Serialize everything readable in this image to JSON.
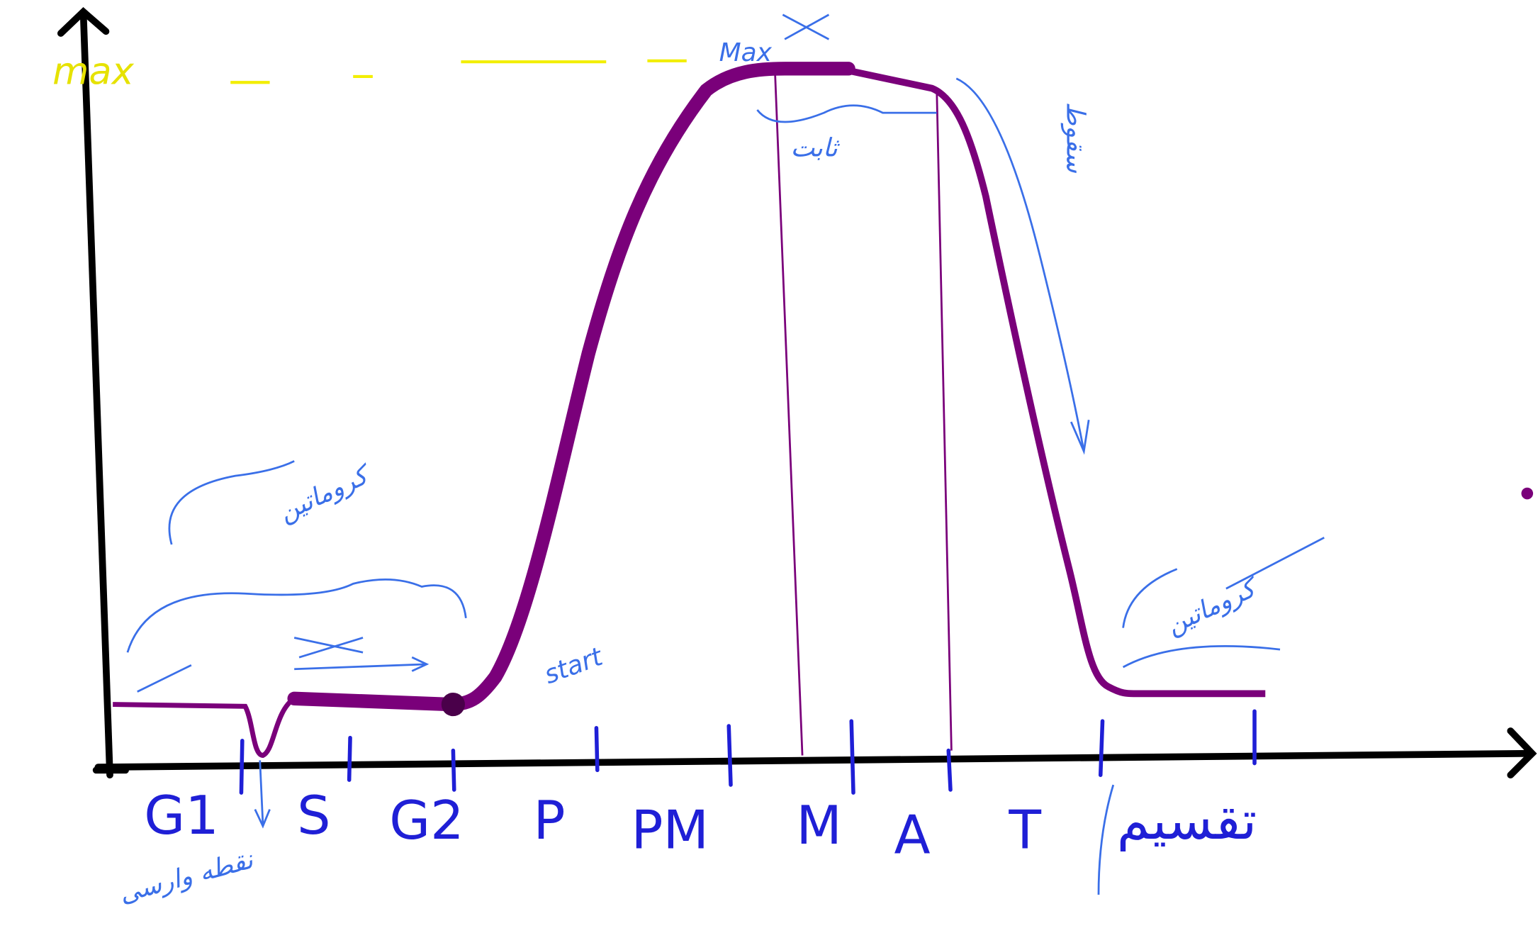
{
  "phases": [
    "G1",
    "S",
    "G2",
    "P",
    "PM",
    "M",
    "A",
    "T",
    "تقسیم"
  ],
  "annotations": {
    "max_top": "Max",
    "max_left": "max",
    "start": "start",
    "constant": "ثابت",
    "fall": "سقوط",
    "chromatin_left": "کروماتین",
    "chromatin_right": "کروماتین",
    "checkpoint": "نقطه وارسی"
  }
}
